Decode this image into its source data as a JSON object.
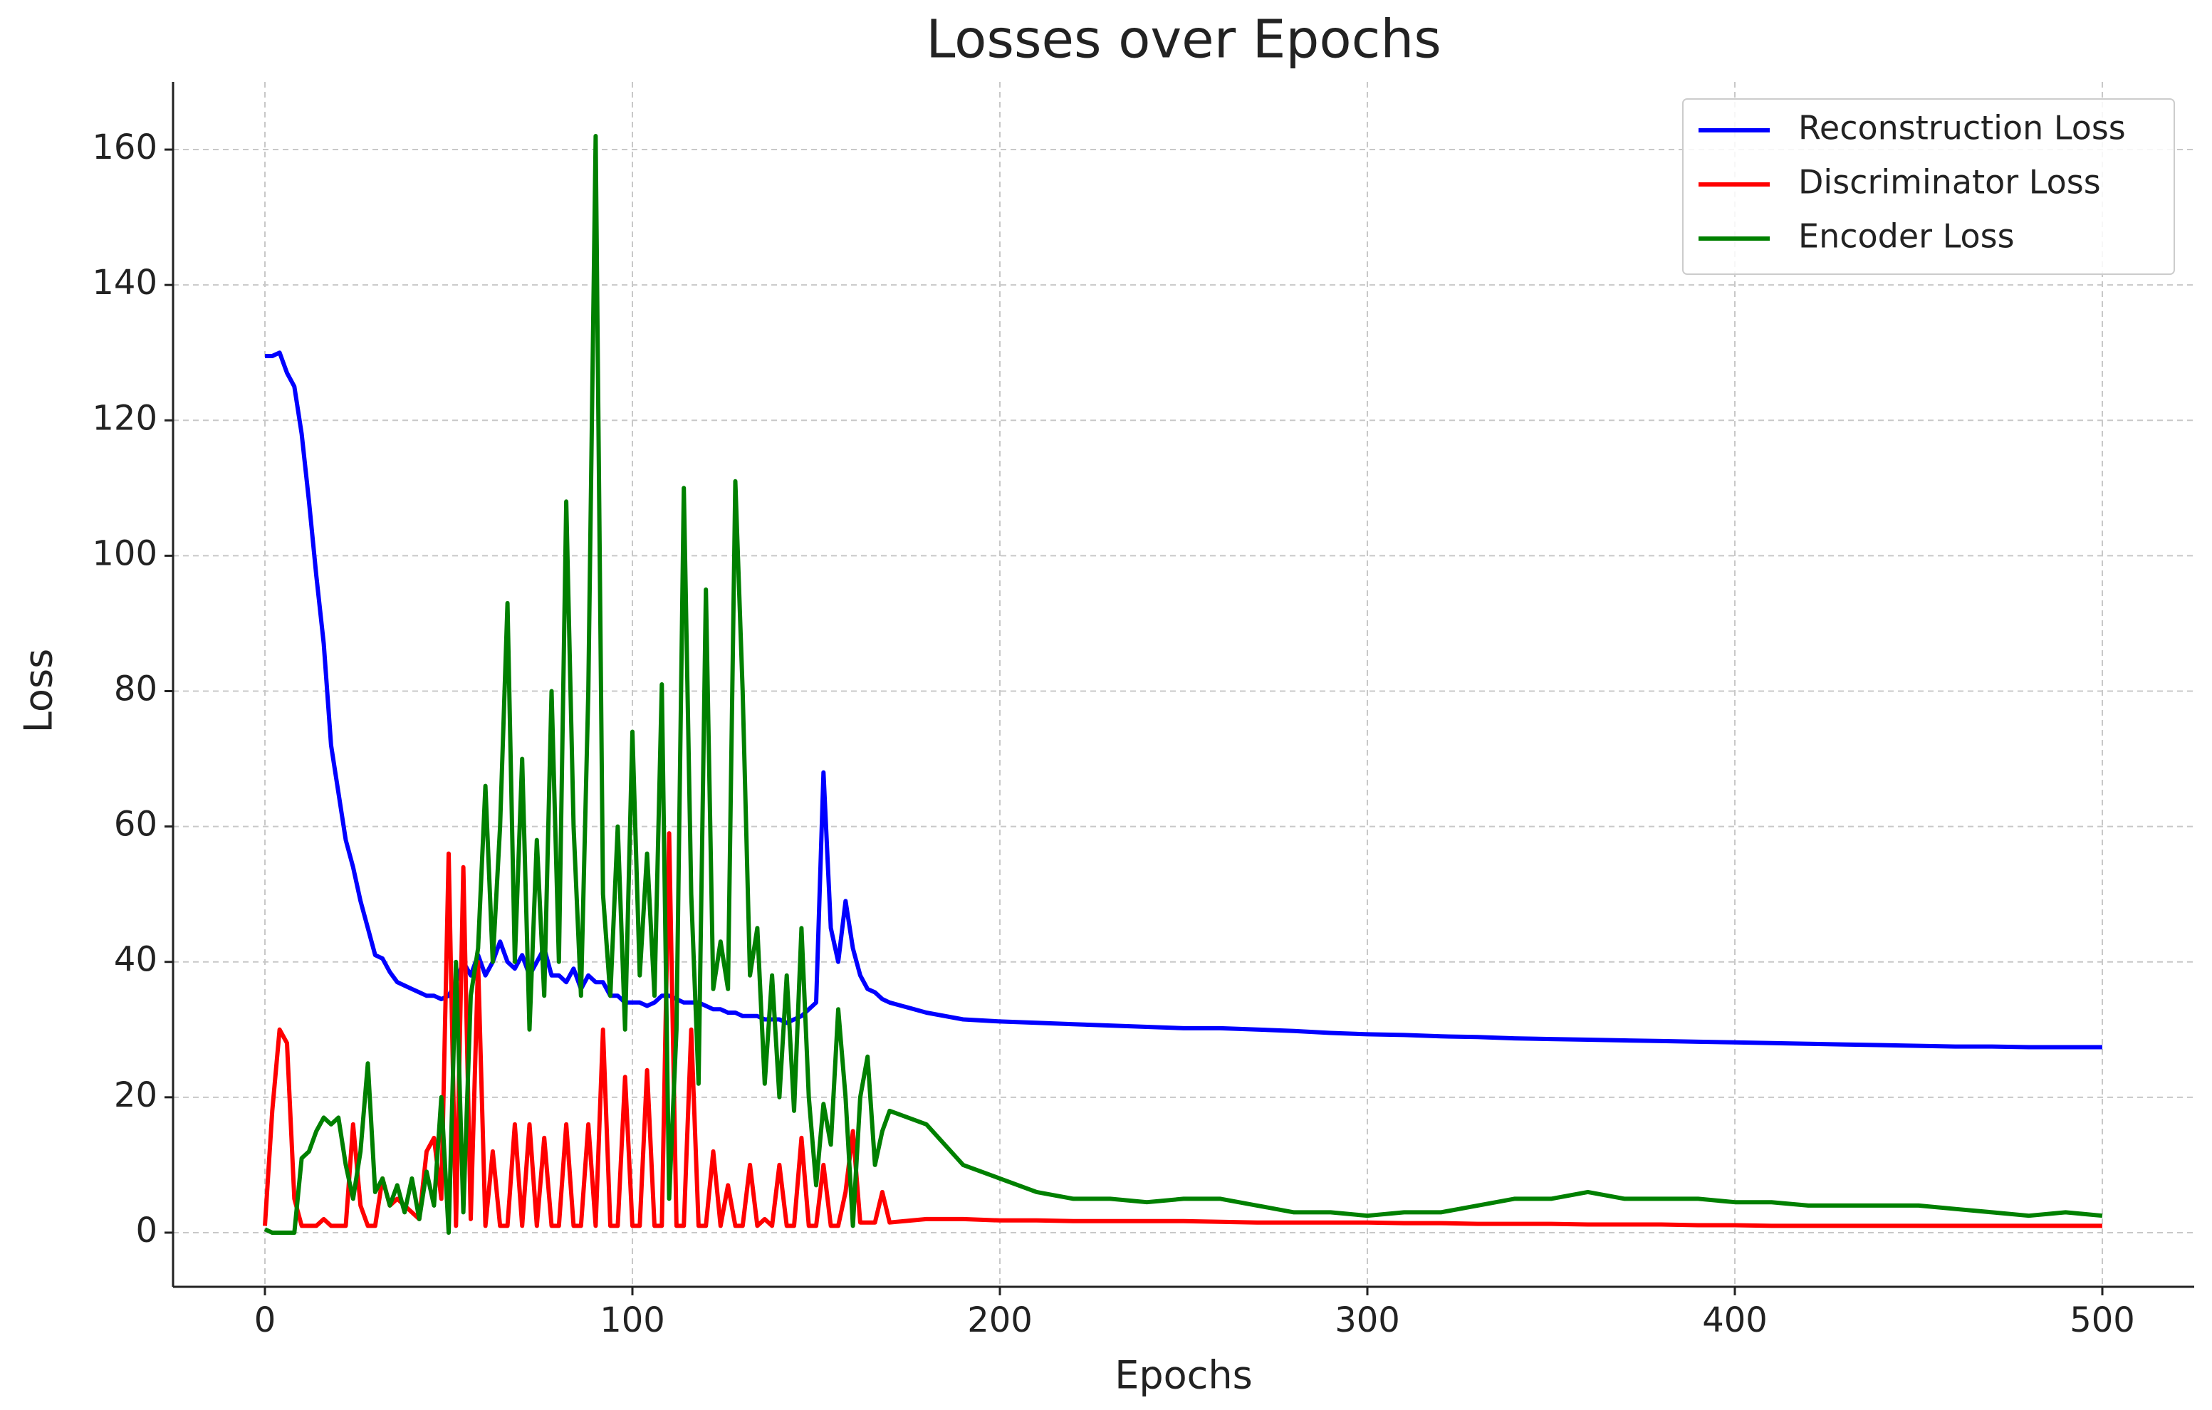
{
  "chart_data": {
    "type": "line",
    "title": "Losses over Epochs",
    "xlabel": "Epochs",
    "ylabel": "Loss",
    "x": [
      0,
      2,
      4,
      6,
      8,
      10,
      12,
      14,
      16,
      18,
      20,
      22,
      24,
      26,
      28,
      30,
      32,
      34,
      36,
      38,
      40,
      42,
      44,
      46,
      48,
      50,
      52,
      54,
      56,
      58,
      60,
      62,
      64,
      66,
      68,
      70,
      72,
      74,
      76,
      78,
      80,
      82,
      84,
      86,
      88,
      90,
      92,
      94,
      96,
      98,
      100,
      102,
      104,
      106,
      108,
      110,
      112,
      114,
      116,
      118,
      120,
      122,
      124,
      126,
      128,
      130,
      132,
      134,
      136,
      138,
      140,
      142,
      144,
      146,
      148,
      150,
      152,
      154,
      156,
      158,
      160,
      162,
      164,
      166,
      168,
      170,
      180,
      190,
      200,
      210,
      220,
      230,
      240,
      250,
      260,
      270,
      280,
      290,
      300,
      310,
      320,
      330,
      340,
      350,
      360,
      370,
      380,
      390,
      400,
      410,
      420,
      430,
      440,
      450,
      460,
      470,
      480,
      490,
      500
    ],
    "series": [
      {
        "name": "Reconstruction Loss",
        "color": "#0000ff",
        "values": [
          129.5,
          129.5,
          130,
          127,
          125,
          118,
          108,
          97,
          87,
          72,
          65,
          58,
          54,
          49,
          45,
          41,
          40.5,
          38.5,
          37,
          36.5,
          36,
          35.5,
          35,
          35,
          34.5,
          35,
          37,
          40,
          38,
          41,
          38,
          40,
          43,
          40,
          39,
          41,
          38,
          40,
          42,
          38,
          38,
          37,
          39,
          36,
          38,
          37,
          37,
          35,
          35,
          34,
          34,
          34,
          33.5,
          34,
          35,
          35,
          34.5,
          34,
          34,
          34,
          33.5,
          33,
          33,
          32.5,
          32.5,
          32,
          32,
          32,
          31.5,
          31.5,
          31.5,
          31,
          31.5,
          32,
          33,
          34,
          68,
          45,
          40,
          49,
          42,
          38,
          36,
          35.5,
          34.5,
          34,
          32.5,
          31.5,
          31.2,
          31,
          30.8,
          30.6,
          30.4,
          30.2,
          30.2,
          30,
          29.8,
          29.5,
          29.3,
          29.2,
          29,
          28.9,
          28.7,
          28.6,
          28.5,
          28.4,
          28.3,
          28.2,
          28.1,
          28,
          27.9,
          27.8,
          27.7,
          27.6,
          27.5,
          27.5,
          27.4,
          27.4,
          27.4
        ]
      },
      {
        "name": "Discriminator Loss",
        "color": "#ff0000",
        "values": [
          1,
          18,
          30,
          28,
          5,
          1,
          1,
          1,
          2,
          1,
          1,
          1,
          16,
          4,
          1,
          1,
          8,
          4,
          5,
          4,
          3,
          2,
          12,
          14,
          5,
          56,
          1,
          54,
          2,
          40,
          1,
          12,
          1,
          1,
          16,
          1,
          16,
          1,
          14,
          1,
          1,
          16,
          1,
          1,
          16,
          1,
          30,
          1,
          1,
          23,
          1,
          1,
          24,
          1,
          1,
          59,
          1,
          1,
          30,
          1,
          1,
          12,
          1,
          7,
          1,
          1,
          10,
          1,
          2,
          1,
          10,
          1,
          1,
          14,
          1,
          1,
          10,
          1,
          1,
          6,
          15,
          1.5,
          1.5,
          1.5,
          6,
          1.5,
          2,
          2,
          1.8,
          1.8,
          1.7,
          1.7,
          1.7,
          1.7,
          1.6,
          1.5,
          1.5,
          1.5,
          1.5,
          1.4,
          1.4,
          1.3,
          1.3,
          1.3,
          1.2,
          1.2,
          1.2,
          1.1,
          1.1,
          1,
          1,
          1,
          1,
          1,
          1,
          1,
          1,
          1,
          1
        ]
      },
      {
        "name": "Encoder Loss",
        "color": "#008000",
        "values": [
          0.5,
          0,
          0,
          0,
          0,
          11,
          12,
          15,
          17,
          16,
          17,
          10,
          5,
          12,
          25,
          6,
          8,
          4,
          7,
          3,
          8,
          2,
          9,
          4,
          20,
          0,
          40,
          3,
          35,
          42,
          66,
          40,
          60,
          93,
          40,
          70,
          30,
          58,
          35,
          80,
          40,
          108,
          60,
          35,
          80,
          162,
          50,
          35,
          60,
          30,
          74,
          38,
          56,
          35,
          81,
          5,
          30,
          110,
          50,
          22,
          95,
          36,
          43,
          36,
          111,
          80,
          38,
          45,
          22,
          38,
          20,
          38,
          18,
          45,
          20,
          7,
          19,
          13,
          33,
          20,
          1,
          20,
          26,
          10,
          15,
          18,
          16,
          10,
          8,
          6,
          5,
          5,
          4.5,
          5,
          5,
          4,
          3,
          3,
          2.5,
          3,
          3,
          4,
          5,
          5,
          6,
          5,
          5,
          5,
          4.5,
          4.5,
          4,
          4,
          4,
          4,
          3.5,
          3,
          2.5,
          3,
          2.5
        ]
      }
    ],
    "xlim": [
      -25,
      525
    ],
    "ylim": [
      -8,
      170
    ],
    "xticks": [
      0,
      100,
      200,
      300,
      400,
      500
    ],
    "yticks": [
      0,
      20,
      40,
      60,
      80,
      100,
      120,
      140,
      160
    ],
    "grid": true,
    "legend": "upper right"
  }
}
